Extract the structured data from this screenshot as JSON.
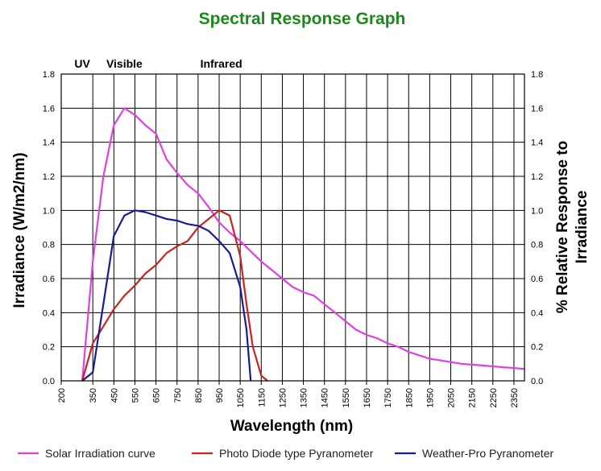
{
  "chart_data": {
    "type": "line",
    "title": "Spectral Response Graph",
    "xlabel": "Wavelength (nm)",
    "ylabel": "Irradiance (W/m2/nm)",
    "y2label_lines": [
      "% Relative Response to",
      "Irradiance"
    ],
    "xlim": [
      200,
      2400
    ],
    "ylim": [
      0,
      1.8
    ],
    "x_ticks": [
      200,
      350,
      450,
      550,
      650,
      750,
      850,
      950,
      1050,
      1150,
      1250,
      1350,
      1450,
      1550,
      1650,
      1750,
      1850,
      1950,
      2050,
      2150,
      2250,
      2350
    ],
    "y_ticks": [
      "0.0",
      "0.2",
      "0.4",
      "0.6",
      "0.8",
      "1.0",
      "1.2",
      "1.4",
      "1.6",
      "1.8"
    ],
    "band_labels": [
      {
        "text": "UV",
        "x": 300
      },
      {
        "text": "Visible",
        "x": 500
      },
      {
        "text": "Infrared",
        "x": 960
      }
    ],
    "grid": true,
    "legend_position": "bottom",
    "series": [
      {
        "name": "Solar Irradiation curve",
        "color": "#e040e0",
        "x": [
          300,
          350,
          400,
          450,
          500,
          550,
          600,
          650,
          700,
          750,
          800,
          850,
          900,
          950,
          1000,
          1050,
          1100,
          1150,
          1200,
          1250,
          1300,
          1350,
          1400,
          1450,
          1500,
          1550,
          1600,
          1650,
          1700,
          1750,
          1800,
          1850,
          1900,
          1950,
          2000,
          2050,
          2100,
          2150,
          2200,
          2250,
          2300,
          2350,
          2400
        ],
        "values": [
          0.0,
          0.7,
          1.2,
          1.5,
          1.6,
          1.56,
          1.5,
          1.45,
          1.3,
          1.22,
          1.15,
          1.1,
          1.02,
          0.93,
          0.87,
          0.82,
          0.76,
          0.7,
          0.65,
          0.6,
          0.55,
          0.52,
          0.5,
          0.45,
          0.4,
          0.35,
          0.3,
          0.27,
          0.25,
          0.22,
          0.2,
          0.17,
          0.15,
          0.13,
          0.12,
          0.11,
          0.1,
          0.095,
          0.09,
          0.085,
          0.08,
          0.075,
          0.07
        ]
      },
      {
        "name": "Photo Diode type Pyranometer",
        "color": "#cc2222",
        "x": [
          300,
          350,
          400,
          450,
          500,
          550,
          600,
          650,
          700,
          750,
          800,
          850,
          900,
          950,
          1000,
          1050,
          1080,
          1110,
          1150,
          1180
        ],
        "values": [
          0.0,
          0.22,
          0.32,
          0.42,
          0.5,
          0.56,
          0.63,
          0.68,
          0.75,
          0.79,
          0.82,
          0.9,
          0.95,
          1.0,
          0.97,
          0.73,
          0.45,
          0.2,
          0.03,
          0.0
        ]
      },
      {
        "name": "Weather-Pro Pyranometer",
        "color": "#1a1a99",
        "x": [
          300,
          350,
          400,
          450,
          500,
          550,
          600,
          650,
          700,
          750,
          800,
          850,
          900,
          950,
          1000,
          1050,
          1080,
          1100
        ],
        "values": [
          0.0,
          0.05,
          0.45,
          0.85,
          0.97,
          1.0,
          0.99,
          0.97,
          0.95,
          0.94,
          0.92,
          0.91,
          0.88,
          0.82,
          0.75,
          0.55,
          0.3,
          0.0
        ]
      }
    ]
  }
}
